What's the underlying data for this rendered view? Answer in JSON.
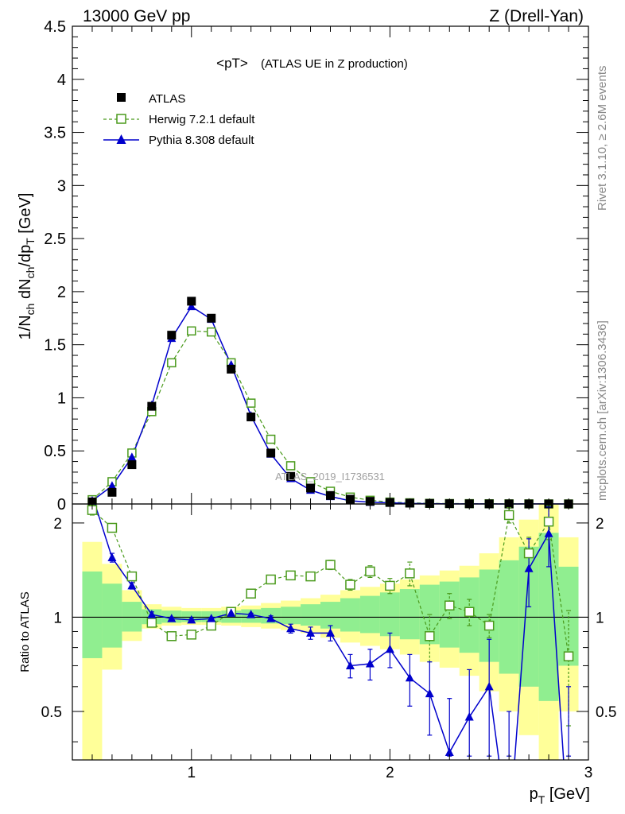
{
  "header": {
    "left": "13000 GeV pp",
    "right": "Z (Drell-Yan)"
  },
  "side_labels": {
    "rivet": "Rivet 3.1.10, ≥ 2.6M events",
    "mcplots": "mcplots.cern.ch [arXiv:1306.3436]"
  },
  "plot_title": {
    "main": "<pT>",
    "sub": "(ATLAS UE in Z production)"
  },
  "watermark": "ATLAS_2019_I1736531",
  "colors": {
    "data": "#000000",
    "herwig": "#4a9a1c",
    "pythia": "#0000cc",
    "band_inner": "#90ee90",
    "band_outer": "#ffff99"
  },
  "legend": {
    "placement": "top-left",
    "entries": [
      "ATLAS",
      "Herwig 7.2.1 default",
      "Pythia 8.308 default"
    ]
  },
  "chart_data": [
    {
      "type": "scatter",
      "panel": "main",
      "ylabel": "1/N_ch dN_ch/dp_T [GeV]",
      "xlim": [
        0.4,
        3.0
      ],
      "ylim": [
        0,
        4.5
      ],
      "yticks": [
        0,
        0.5,
        1,
        1.5,
        2,
        2.5,
        3,
        3.5,
        4,
        4.5
      ],
      "ytick_labels": [
        "0",
        "0.5",
        "1",
        "1.5",
        "2",
        "2.5",
        "3",
        "3.5",
        "4",
        "4.5"
      ],
      "x": [
        0.5,
        0.6,
        0.7,
        0.8,
        0.9,
        1.0,
        1.1,
        1.2,
        1.3,
        1.4,
        1.5,
        1.6,
        1.7,
        1.8,
        1.9,
        2.0,
        2.1,
        2.2,
        2.3,
        2.4,
        2.5,
        2.6,
        2.7,
        2.8,
        2.9
      ],
      "series": [
        {
          "name": "ATLAS",
          "values": [
            0.02,
            0.11,
            0.37,
            0.92,
            1.59,
            1.91,
            1.75,
            1.27,
            0.82,
            0.48,
            0.26,
            0.15,
            0.08,
            0.045,
            0.025,
            0.014,
            0.008,
            0.005,
            0.003,
            0.002,
            0.001,
            0.001,
            0.0005,
            0.0003,
            0.0002
          ]
        },
        {
          "name": "Herwig 7.2.1 default",
          "values": [
            0.04,
            0.21,
            0.48,
            0.87,
            1.33,
            1.63,
            1.62,
            1.33,
            0.95,
            0.61,
            0.36,
            0.21,
            0.12,
            0.065,
            0.035,
            0.018,
            0.011,
            0.006,
            0.004,
            0.003,
            0.002,
            0.001,
            0.0008,
            0.0005,
            0.0002
          ]
        },
        {
          "name": "Pythia 8.308 default",
          "values": [
            0.03,
            0.17,
            0.44,
            0.93,
            1.56,
            1.86,
            1.74,
            1.31,
            0.83,
            0.47,
            0.24,
            0.13,
            0.07,
            0.03,
            0.017,
            0.011,
            0.005,
            0.003,
            0.001,
            0.001,
            0.0006,
            0.0002,
            0.0007,
            0.0005,
            0.0001
          ]
        }
      ]
    },
    {
      "type": "line",
      "panel": "ratio",
      "ylabel": "Ratio to ATLAS",
      "xlabel": "p_T [GeV]",
      "xlim": [
        0.4,
        3.0
      ],
      "ylim": [
        0.35,
        2.3
      ],
      "yticks": [
        0.5,
        1,
        2
      ],
      "ytick_labels": [
        "0.5",
        "1",
        "2"
      ],
      "xticks": [
        1,
        2,
        3
      ],
      "xtick_labels": [
        "1",
        "2",
        "3"
      ],
      "bin_edges": [
        0.45,
        0.55,
        0.65,
        0.75,
        0.85,
        0.95,
        1.05,
        1.15,
        1.25,
        1.35,
        1.45,
        1.55,
        1.65,
        1.75,
        1.85,
        1.95,
        2.05,
        2.15,
        2.25,
        2.35,
        2.45,
        2.55,
        2.65,
        2.75,
        2.85,
        2.95
      ],
      "band_inner": [
        [
          0.74,
          1.4
        ],
        [
          0.8,
          1.28
        ],
        [
          0.9,
          1.12
        ],
        [
          0.95,
          1.06
        ],
        [
          0.96,
          1.05
        ],
        [
          0.965,
          1.045
        ],
        [
          0.965,
          1.045
        ],
        [
          0.96,
          1.05
        ],
        [
          0.96,
          1.06
        ],
        [
          0.955,
          1.07
        ],
        [
          0.95,
          1.08
        ],
        [
          0.94,
          1.1
        ],
        [
          0.92,
          1.12
        ],
        [
          0.9,
          1.15
        ],
        [
          0.89,
          1.17
        ],
        [
          0.87,
          1.2
        ],
        [
          0.85,
          1.23
        ],
        [
          0.82,
          1.27
        ],
        [
          0.8,
          1.3
        ],
        [
          0.77,
          1.34
        ],
        [
          0.72,
          1.42
        ],
        [
          0.66,
          1.52
        ],
        [
          0.6,
          1.68
        ],
        [
          0.54,
          1.86
        ],
        [
          0.7,
          1.45
        ]
      ],
      "band_outer": [
        [
          0.35,
          1.74
        ],
        [
          0.68,
          1.48
        ],
        [
          0.84,
          1.22
        ],
        [
          0.92,
          1.1
        ],
        [
          0.94,
          1.08
        ],
        [
          0.945,
          1.07
        ],
        [
          0.945,
          1.07
        ],
        [
          0.94,
          1.08
        ],
        [
          0.93,
          1.09
        ],
        [
          0.92,
          1.11
        ],
        [
          0.91,
          1.13
        ],
        [
          0.89,
          1.15
        ],
        [
          0.86,
          1.18
        ],
        [
          0.83,
          1.22
        ],
        [
          0.81,
          1.25
        ],
        [
          0.79,
          1.28
        ],
        [
          0.76,
          1.32
        ],
        [
          0.72,
          1.36
        ],
        [
          0.69,
          1.41
        ],
        [
          0.65,
          1.46
        ],
        [
          0.58,
          1.6
        ],
        [
          0.5,
          1.8
        ],
        [
          0.42,
          2.05
        ],
        [
          0.35,
          2.3
        ],
        [
          0.5,
          1.8
        ]
      ],
      "series": [
        {
          "name": "Herwig 7.2.1 default",
          "x": [
            0.5,
            0.6,
            0.7,
            0.8,
            0.9,
            1.0,
            1.1,
            1.2,
            1.3,
            1.4,
            1.5,
            1.6,
            1.7,
            1.8,
            1.9,
            2.0,
            2.1,
            2.2,
            2.3,
            2.4,
            2.5,
            2.6,
            2.7,
            2.8,
            2.9
          ],
          "values": [
            2.2,
            1.93,
            1.35,
            0.96,
            0.87,
            0.88,
            0.94,
            1.04,
            1.19,
            1.32,
            1.36,
            1.35,
            1.47,
            1.27,
            1.4,
            1.26,
            1.38,
            0.87,
            1.09,
            1.04,
            0.94,
            2.12,
            1.6,
            2.02,
            0.75
          ],
          "err": [
            0.08,
            0.05,
            0.03,
            0.02,
            0.02,
            0.01,
            0.01,
            0.01,
            0.02,
            0.02,
            0.03,
            0.03,
            0.05,
            0.05,
            0.06,
            0.07,
            0.12,
            0.15,
            0.1,
            0.1,
            0.08,
            0.12,
            0.2,
            0.25,
            0.3
          ]
        },
        {
          "name": "Pythia 8.308 default",
          "x": [
            0.5,
            0.6,
            0.7,
            0.8,
            0.9,
            1.0,
            1.1,
            1.2,
            1.3,
            1.4,
            1.5,
            1.6,
            1.7,
            1.8,
            1.9,
            2.0,
            2.1,
            2.2,
            2.3,
            2.4,
            2.5,
            2.6,
            2.7,
            2.8,
            2.9
          ],
          "values": [
            2.45,
            1.55,
            1.26,
            1.02,
            0.99,
            0.98,
            0.99,
            1.03,
            1.02,
            0.99,
            0.92,
            0.89,
            0.89,
            0.7,
            0.71,
            0.79,
            0.64,
            0.57,
            0.37,
            0.48,
            0.6,
            0.2,
            1.43,
            1.85,
            0.2
          ],
          "err": [
            0.1,
            0.05,
            0.03,
            0.02,
            0.01,
            0.01,
            0.01,
            0.01,
            0.01,
            0.02,
            0.03,
            0.04,
            0.05,
            0.06,
            0.08,
            0.1,
            0.12,
            0.15,
            0.18,
            0.2,
            0.25,
            0.3,
            0.35,
            0.4,
            0.4
          ]
        }
      ]
    }
  ]
}
